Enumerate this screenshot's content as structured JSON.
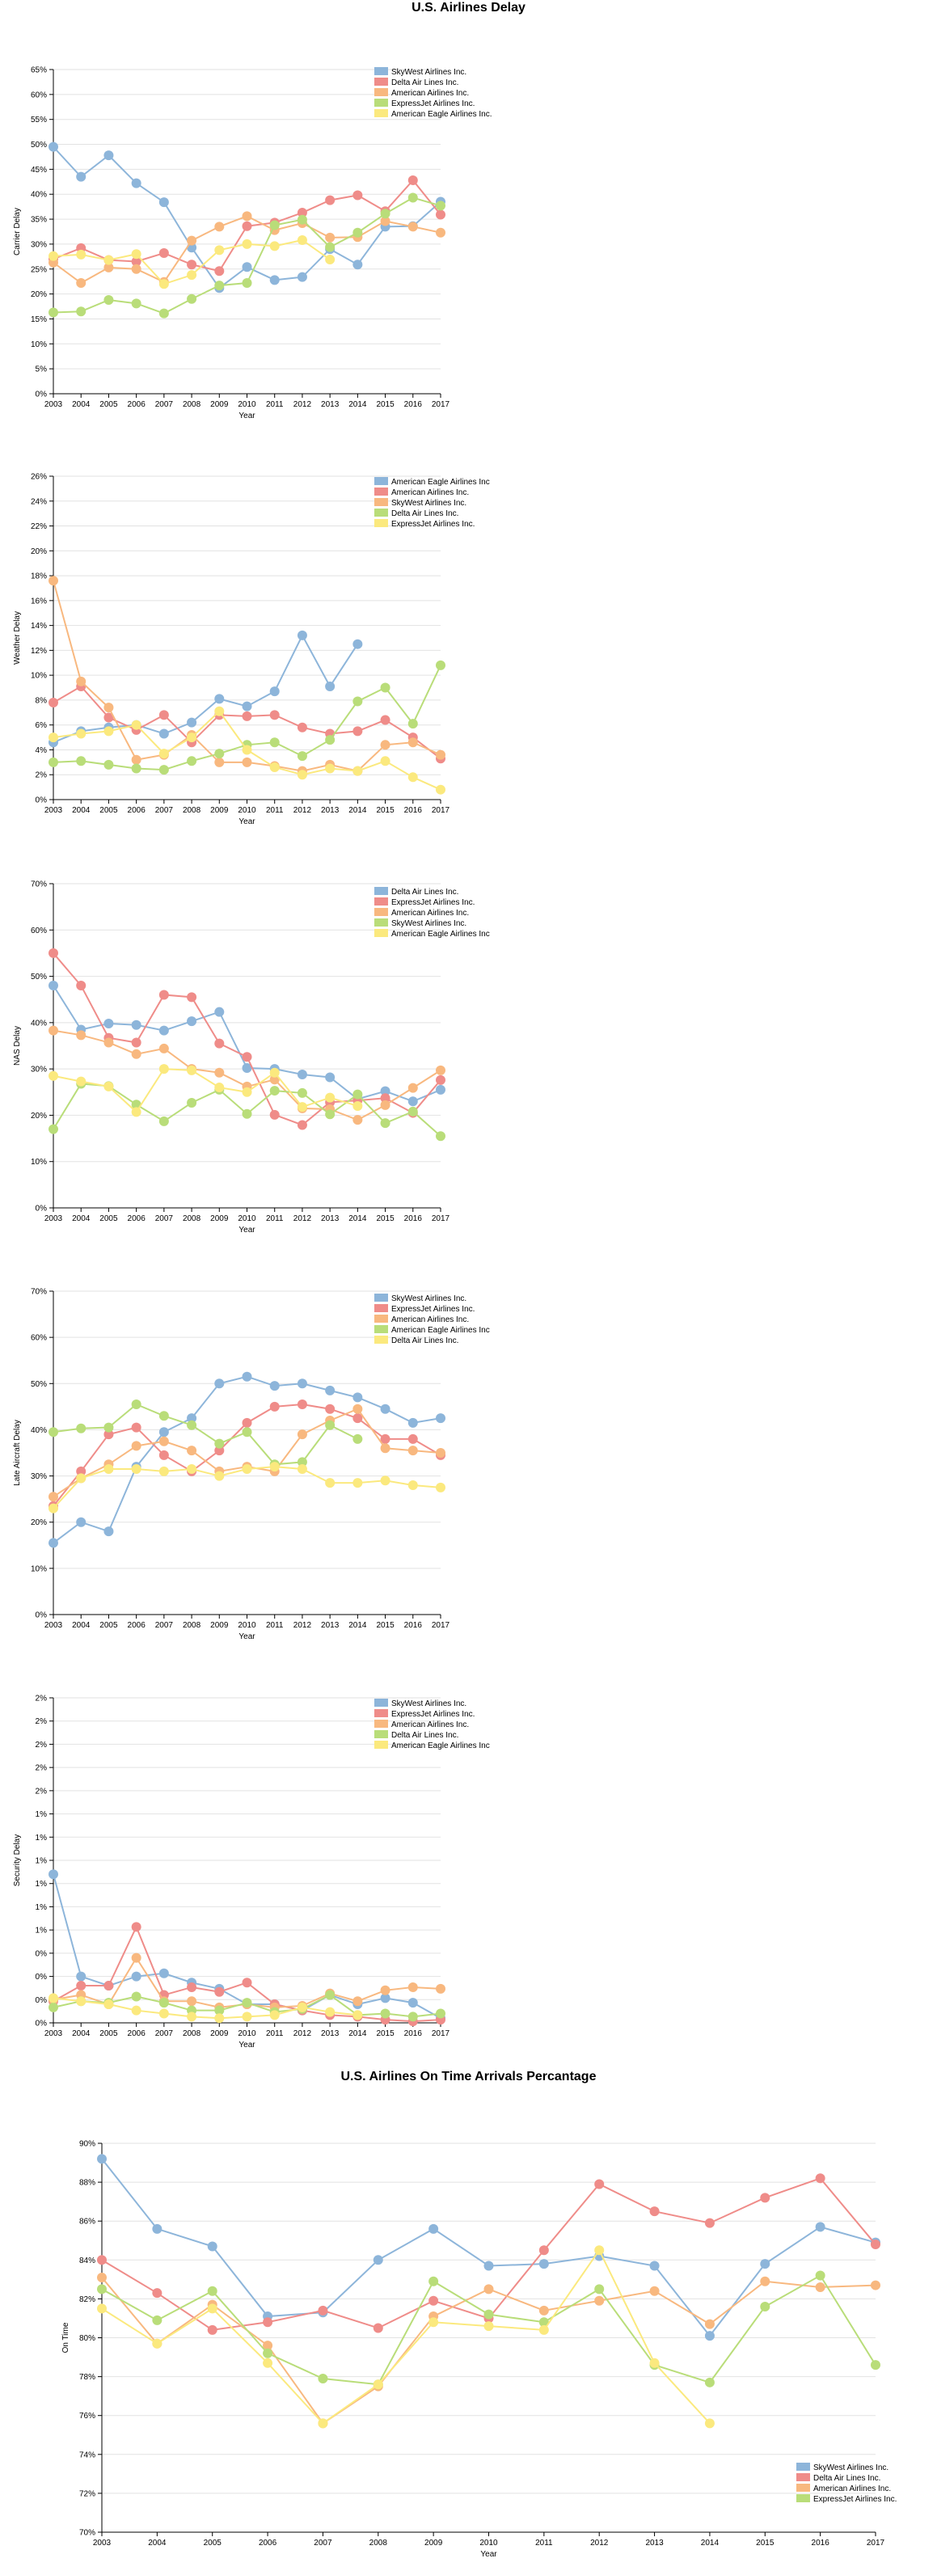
{
  "page": {
    "delay_title": "U.S. Airlines Delay",
    "ontime_title": "U.S. Airlines On Time Arrivals Percantage"
  },
  "colors": {
    "blue": "#8db5da",
    "red": "#ef8c89",
    "orange": "#f8b87f",
    "green": "#b9dd79",
    "yellow": "#fbe97e",
    "grid": "#e2e2e2",
    "axis": "#000000"
  },
  "chart_data": [
    {
      "id": "carrier",
      "type": "line",
      "ylabel": "Carrier Delay",
      "xlabel": "Year",
      "x": [
        2003,
        2004,
        2005,
        2006,
        2007,
        2008,
        2009,
        2010,
        2011,
        2012,
        2013,
        2014,
        2015,
        2016,
        2017
      ],
      "ylim": [
        0,
        65
      ],
      "yticks": [
        0,
        5,
        10,
        15,
        20,
        25,
        30,
        35,
        40,
        45,
        50,
        55,
        60,
        65
      ],
      "ytick_suffix": "%",
      "grid": true,
      "legend_position": "top-right",
      "series": [
        {
          "name": "SkyWest Airlines Inc.",
          "color": "blue",
          "values": [
            49.5,
            43.5,
            47.8,
            42.2,
            38.4,
            29.3,
            21.2,
            25.4,
            22.8,
            23.4,
            29.0,
            25.9,
            33.5,
            33.6,
            38.5
          ]
        },
        {
          "name": "Delta Air Lines Inc.",
          "color": "red",
          "values": [
            27.0,
            29.2,
            26.8,
            26.5,
            28.2,
            25.9,
            24.6,
            33.6,
            34.3,
            36.3,
            38.8,
            39.8,
            36.6,
            42.8,
            35.9
          ]
        },
        {
          "name": "American Airlines Inc.",
          "color": "orange",
          "values": [
            26.3,
            22.2,
            25.3,
            25.0,
            22.4,
            30.7,
            33.5,
            35.6,
            32.8,
            34.2,
            31.3,
            31.4,
            34.6,
            33.5,
            32.3
          ]
        },
        {
          "name": "ExpressJet Airlines Inc.",
          "color": "green",
          "values": [
            16.3,
            16.5,
            18.8,
            18.1,
            16.1,
            19.0,
            21.7,
            22.2,
            33.8,
            34.9,
            29.4,
            32.3,
            36.1,
            39.3,
            37.7
          ]
        },
        {
          "name": "American Eagle Airlines Inc.",
          "color": "yellow",
          "values": [
            27.6,
            27.9,
            26.8,
            28.0,
            22.0,
            23.8,
            28.8,
            30.0,
            29.6,
            30.8,
            26.9,
            null,
            null,
            null,
            null
          ]
        }
      ]
    },
    {
      "id": "weather",
      "type": "line",
      "ylabel": "Weather Delay",
      "xlabel": "Year",
      "x": [
        2003,
        2004,
        2005,
        2006,
        2007,
        2008,
        2009,
        2010,
        2011,
        2012,
        2013,
        2014,
        2015,
        2016,
        2017
      ],
      "ylim": [
        0,
        26
      ],
      "yticks": [
        0,
        2,
        4,
        6,
        8,
        10,
        12,
        14,
        16,
        18,
        20,
        22,
        24,
        26
      ],
      "ytick_suffix": "%",
      "grid": true,
      "legend_position": "top-right",
      "series": [
        {
          "name": "American Eagle Airlines Inc",
          "color": "blue",
          "values": [
            4.6,
            5.5,
            5.8,
            6.0,
            5.3,
            6.2,
            8.1,
            7.5,
            8.7,
            13.2,
            9.1,
            12.5,
            null,
            null,
            null
          ]
        },
        {
          "name": "American Airlines Inc.",
          "color": "red",
          "values": [
            7.8,
            9.1,
            6.6,
            5.6,
            6.8,
            4.6,
            6.8,
            6.7,
            6.8,
            5.8,
            5.3,
            5.5,
            6.4,
            5.0,
            3.3
          ]
        },
        {
          "name": "SkyWest Airlines Inc.",
          "color": "orange",
          "values": [
            17.6,
            9.5,
            7.4,
            3.2,
            3.6,
            5.2,
            3.0,
            3.0,
            2.7,
            2.3,
            2.8,
            2.3,
            4.4,
            4.6,
            3.6
          ]
        },
        {
          "name": "Delta Air Lines Inc.",
          "color": "green",
          "values": [
            3.0,
            3.1,
            2.8,
            2.5,
            2.4,
            3.1,
            3.7,
            4.4,
            4.6,
            3.5,
            4.8,
            7.9,
            9.0,
            6.1,
            10.8
          ]
        },
        {
          "name": "ExpressJet Airlines Inc.",
          "color": "yellow",
          "values": [
            5.0,
            5.3,
            5.5,
            6.0,
            3.7,
            5.0,
            7.1,
            4.0,
            2.6,
            2.0,
            2.5,
            2.3,
            3.1,
            1.8,
            0.8
          ]
        }
      ]
    },
    {
      "id": "nas",
      "type": "line",
      "ylabel": "NAS Delay",
      "xlabel": "Year",
      "x": [
        2003,
        2004,
        2005,
        2006,
        2007,
        2008,
        2009,
        2010,
        2011,
        2012,
        2013,
        2014,
        2015,
        2016,
        2017
      ],
      "ylim": [
        0,
        70
      ],
      "yticks": [
        0,
        10,
        20,
        30,
        40,
        50,
        60,
        70
      ],
      "ytick_suffix": "%",
      "grid": true,
      "legend_position": "top-right",
      "series": [
        {
          "name": "Delta Air Lines Inc.",
          "color": "blue",
          "values": [
            48.0,
            38.5,
            39.8,
            39.5,
            38.3,
            40.3,
            42.3,
            30.2,
            30.0,
            28.8,
            28.2,
            23.5,
            25.2,
            23.0,
            25.5
          ]
        },
        {
          "name": "ExpressJet Airlines Inc.",
          "color": "red",
          "values": [
            55.0,
            48.0,
            36.7,
            35.7,
            46.0,
            45.5,
            35.5,
            32.6,
            20.1,
            17.9,
            22.8,
            23.2,
            23.7,
            20.5,
            27.6
          ]
        },
        {
          "name": "American Airlines Inc.",
          "color": "orange",
          "values": [
            38.3,
            37.3,
            35.7,
            33.2,
            34.4,
            30.0,
            29.2,
            26.2,
            27.7,
            21.5,
            21.3,
            19.0,
            22.2,
            25.9,
            29.7
          ]
        },
        {
          "name": "SkyWest Airlines Inc.",
          "color": "green",
          "values": [
            17.0,
            26.8,
            26.3,
            22.3,
            18.7,
            22.7,
            25.5,
            20.3,
            25.3,
            24.8,
            20.2,
            24.5,
            18.3,
            20.8,
            15.5
          ]
        },
        {
          "name": "American Eagle Airlines Inc",
          "color": "yellow",
          "values": [
            28.5,
            27.3,
            26.2,
            20.7,
            30.0,
            29.7,
            26.0,
            25.0,
            29.2,
            21.8,
            23.8,
            22.0,
            null,
            null,
            null
          ]
        }
      ]
    },
    {
      "id": "late_aircraft",
      "type": "line",
      "ylabel": "Late Aircraft Delay",
      "xlabel": "Year",
      "x": [
        2003,
        2004,
        2005,
        2006,
        2007,
        2008,
        2009,
        2010,
        2011,
        2012,
        2013,
        2014,
        2015,
        2016,
        2017
      ],
      "ylim": [
        0,
        70
      ],
      "yticks": [
        0,
        10,
        20,
        30,
        40,
        50,
        60,
        70
      ],
      "ytick_suffix": "%",
      "grid": true,
      "legend_position": "top-right",
      "series": [
        {
          "name": "SkyWest Airlines Inc.",
          "color": "blue",
          "values": [
            15.5,
            20.0,
            18.0,
            32.0,
            39.5,
            42.5,
            50.0,
            51.5,
            49.5,
            50.0,
            48.5,
            47.0,
            44.5,
            41.5,
            42.5
          ]
        },
        {
          "name": "ExpressJet Airlines Inc.",
          "color": "red",
          "values": [
            23.5,
            31.0,
            39.0,
            40.5,
            34.5,
            31.0,
            35.5,
            41.5,
            45.0,
            45.5,
            44.5,
            42.5,
            38.0,
            38.0,
            34.5
          ]
        },
        {
          "name": "American Airlines Inc.",
          "color": "orange",
          "values": [
            25.5,
            29.5,
            32.5,
            36.5,
            37.5,
            35.5,
            31.0,
            32.0,
            31.0,
            39.0,
            42.0,
            44.5,
            36.0,
            35.5,
            35.0
          ]
        },
        {
          "name": "American Eagle Airlines Inc",
          "color": "green",
          "values": [
            39.5,
            40.3,
            40.5,
            45.5,
            43.0,
            41.0,
            37.0,
            39.5,
            32.5,
            33.0,
            41.0,
            38.0,
            null,
            null,
            null
          ]
        },
        {
          "name": "Delta Air Lines Inc.",
          "color": "yellow",
          "values": [
            23.0,
            29.5,
            31.5,
            31.5,
            31.0,
            31.5,
            30.0,
            31.5,
            32.0,
            31.5,
            28.5,
            28.5,
            29.0,
            28.0,
            27.5
          ]
        }
      ]
    },
    {
      "id": "security",
      "type": "line",
      "ylabel": "Security Delay",
      "xlabel": "Year",
      "x": [
        2003,
        2004,
        2005,
        2006,
        2007,
        2008,
        2009,
        2010,
        2011,
        2012,
        2013,
        2014,
        2015,
        2016,
        2017
      ],
      "ylim": [
        0,
        2.1
      ],
      "yticks": [
        0,
        0.15,
        0.3,
        0.45,
        0.6,
        0.75,
        0.9,
        1.05,
        1.2,
        1.35,
        1.5,
        1.65,
        1.8,
        1.95,
        2.1
      ],
      "ytick_labels": [
        "0%",
        "0%",
        "0%",
        "0%",
        "1%",
        "1%",
        "1%",
        "1%",
        "1%",
        "1%",
        "2%",
        "2%",
        "2%",
        "2%",
        "2%"
      ],
      "grid": true,
      "legend_position": "top-right",
      "series": [
        {
          "name": "SkyWest Airlines Inc.",
          "color": "blue",
          "values": [
            0.96,
            0.3,
            0.24,
            0.3,
            0.32,
            0.26,
            0.22,
            0.12,
            0.12,
            0.08,
            0.18,
            0.12,
            0.16,
            0.13,
            0.03
          ]
        },
        {
          "name": "ExpressJet Airlines Inc.",
          "color": "red",
          "values": [
            0.14,
            0.24,
            0.24,
            0.62,
            0.18,
            0.23,
            0.2,
            0.26,
            0.12,
            0.08,
            0.05,
            0.04,
            0.02,
            0.01,
            0.02
          ]
        },
        {
          "name": "American Airlines Inc.",
          "color": "orange",
          "values": [
            0.15,
            0.18,
            0.12,
            0.42,
            0.14,
            0.14,
            0.1,
            0.12,
            0.1,
            0.11,
            0.19,
            0.14,
            0.21,
            0.23,
            0.22
          ]
        },
        {
          "name": "Delta Air Lines Inc.",
          "color": "green",
          "values": [
            0.1,
            0.14,
            0.13,
            0.17,
            0.13,
            0.08,
            0.08,
            0.13,
            0.07,
            0.09,
            0.18,
            0.05,
            0.06,
            0.04,
            0.06
          ]
        },
        {
          "name": "American Eagle Airlines Inc",
          "color": "yellow",
          "values": [
            0.16,
            0.14,
            0.12,
            0.08,
            0.06,
            0.04,
            0.03,
            0.04,
            0.05,
            0.1,
            0.07,
            0.05,
            null,
            null,
            null
          ]
        }
      ]
    },
    {
      "id": "ontime",
      "type": "line",
      "ylabel": "On Time",
      "xlabel": "Year",
      "x": [
        2003,
        2004,
        2005,
        2006,
        2007,
        2008,
        2009,
        2010,
        2011,
        2012,
        2013,
        2014,
        2015,
        2016,
        2017
      ],
      "ylim": [
        70,
        90
      ],
      "yticks": [
        70,
        72,
        74,
        76,
        78,
        80,
        82,
        84,
        86,
        88,
        90
      ],
      "ytick_suffix": "%",
      "grid": true,
      "legend_position": "bottom-right",
      "series": [
        {
          "name": "SkyWest Airlines Inc.",
          "color": "blue",
          "values": [
            89.2,
            85.6,
            84.7,
            81.1,
            81.3,
            84.0,
            85.6,
            83.7,
            83.8,
            84.2,
            83.7,
            80.1,
            83.8,
            85.7,
            84.9
          ]
        },
        {
          "name": "Delta Air Lines Inc.",
          "color": "red",
          "values": [
            84.0,
            82.3,
            80.4,
            80.8,
            81.4,
            80.5,
            81.9,
            81.0,
            84.5,
            87.9,
            86.5,
            85.9,
            87.2,
            88.2,
            84.8
          ]
        },
        {
          "name": "American Airlines Inc.",
          "color": "orange",
          "values": [
            83.1,
            79.7,
            81.7,
            79.6,
            75.6,
            77.5,
            81.1,
            82.5,
            81.4,
            81.9,
            82.4,
            80.7,
            82.9,
            82.6,
            82.7
          ]
        },
        {
          "name": "ExpressJet Airlines Inc.",
          "color": "green",
          "values": [
            82.5,
            80.9,
            82.4,
            79.2,
            77.9,
            77.6,
            82.9,
            81.2,
            80.8,
            82.5,
            78.6,
            77.7,
            81.6,
            83.2,
            78.6
          ]
        },
        {
          "name": "",
          "color": "yellow",
          "values": [
            81.5,
            79.7,
            81.5,
            78.7,
            75.6,
            77.6,
            80.8,
            80.6,
            80.4,
            84.5,
            78.7,
            75.6,
            null,
            null,
            null
          ]
        }
      ]
    }
  ]
}
